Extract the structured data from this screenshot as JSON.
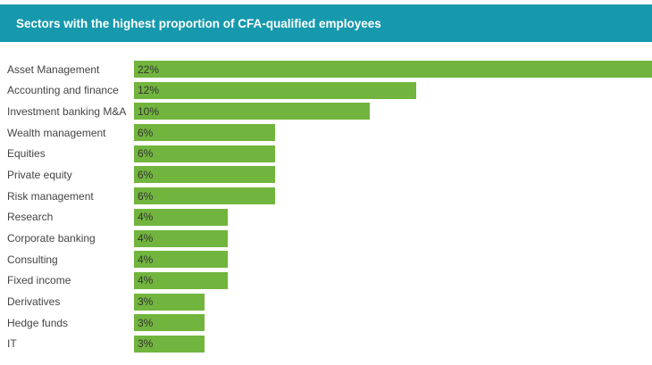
{
  "header": {
    "title": "Sectors with the highest proportion of CFA-qualified employees"
  },
  "colors": {
    "header_bg": "#1799ad",
    "bar": "#72b53e",
    "label_text": "#444444",
    "value_text": "#333333"
  },
  "chart_data": {
    "type": "bar",
    "orientation": "horizontal",
    "title": "Sectors with the highest proportion of CFA-qualified employees",
    "categories": [
      "Asset Management",
      "Accounting and finance",
      "Investment banking M&A",
      "Wealth management",
      "Equities",
      "Private equity",
      "Risk management",
      "Research",
      "Corporate banking",
      "Consulting",
      "Fixed income",
      "Derivatives",
      "Hedge funds",
      "IT"
    ],
    "values": [
      22,
      12,
      10,
      6,
      6,
      6,
      6,
      4,
      4,
      4,
      4,
      3,
      3,
      3
    ],
    "value_suffix": "%",
    "xlabel": "",
    "ylabel": "",
    "xlim": [
      0,
      22
    ],
    "grid": false,
    "legend": false,
    "value_labels_position": "inside-start"
  }
}
